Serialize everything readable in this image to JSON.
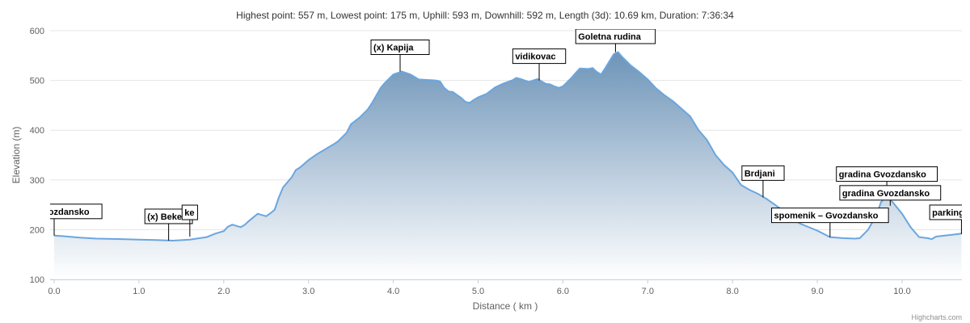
{
  "stats_text": "Highest point: 557 m, Lowest point: 175 m, Uphill: 593 m, Downhill: 592 m, Length (3d): 10.69 km, Duration: 7:36:34",
  "credits": "Highcharts.com",
  "colors": {
    "line": "#6aa6e0",
    "fill_top": "#6e94b8",
    "fill_bottom": "#ffffff",
    "grid": "#e6e6e6",
    "axis": "#c0d0e0"
  },
  "chart_data": {
    "type": "area",
    "xlabel": "Distance ( km )",
    "ylabel": "Elevation (m)",
    "xlim": [
      0,
      10.72
    ],
    "ylim": [
      100,
      600
    ],
    "x_ticks": [
      "0.0",
      "1.0",
      "2.0",
      "3.0",
      "4.0",
      "5.0",
      "6.0",
      "7.0",
      "8.0",
      "9.0",
      "10.0"
    ],
    "y_ticks": [
      "100",
      "200",
      "300",
      "400",
      "500",
      "600"
    ],
    "grid": true,
    "legend": "none",
    "series": [
      {
        "x": [
          0,
          0.1,
          0.3,
          0.5,
          0.8,
          1.0,
          1.2,
          1.4,
          1.6,
          1.8,
          1.9,
          2.0,
          2.05,
          2.1,
          2.2,
          2.25,
          2.3,
          2.4,
          2.5,
          2.55,
          2.6,
          2.65,
          2.7,
          2.8,
          2.85,
          2.9,
          3.0,
          3.1,
          3.2,
          3.3,
          3.35,
          3.45,
          3.5,
          3.6,
          3.7,
          3.75,
          3.85,
          3.9,
          4.0,
          4.1,
          4.2,
          4.3,
          4.5,
          4.55,
          4.6,
          4.65,
          4.7,
          4.8,
          4.85,
          4.9,
          4.95,
          5.0,
          5.1,
          5.2,
          5.3,
          5.4,
          5.45,
          5.5,
          5.6,
          5.7,
          5.8,
          5.85,
          5.9,
          5.95,
          6.0,
          6.1,
          6.15,
          6.2,
          6.3,
          6.35,
          6.4,
          6.45,
          6.5,
          6.6,
          6.65,
          6.7,
          6.8,
          6.9,
          7.0,
          7.1,
          7.2,
          7.3,
          7.5,
          7.6,
          7.7,
          7.8,
          7.9,
          8.0,
          8.1,
          8.2,
          8.3,
          8.4,
          8.5,
          8.6,
          8.7,
          8.8,
          9.0,
          9.15,
          9.3,
          9.45,
          9.5,
          9.6,
          9.7,
          9.75,
          9.8,
          9.85,
          9.9,
          10.0,
          10.1,
          10.2,
          10.3,
          10.35,
          10.4,
          10.5,
          10.6,
          10.7
        ],
        "y": [
          188,
          187,
          184,
          182,
          181,
          180,
          179,
          178,
          180,
          185,
          192,
          197,
          206,
          210,
          205,
          210,
          218,
          232,
          227,
          233,
          240,
          265,
          285,
          305,
          320,
          325,
          340,
          352,
          362,
          372,
          378,
          395,
          412,
          425,
          442,
          455,
          485,
          495,
          512,
          518,
          512,
          502,
          500,
          498,
          485,
          478,
          477,
          465,
          457,
          455,
          461,
          466,
          473,
          486,
          494,
          500,
          505,
          503,
          497,
          503,
          493,
          492,
          488,
          485,
          488,
          505,
          515,
          524,
          523,
          525,
          517,
          512,
          525,
          553,
          557,
          547,
          530,
          517,
          502,
          484,
          470,
          458,
          428,
          400,
          380,
          350,
          330,
          315,
          290,
          280,
          272,
          262,
          250,
          238,
          222,
          212,
          198,
          185,
          183,
          182,
          183,
          200,
          230,
          255,
          265,
          262,
          253,
          232,
          205,
          185,
          183,
          181,
          186,
          188,
          190,
          192
        ]
      }
    ],
    "annotations": [
      {
        "x": 0.0,
        "y": 188,
        "label": "enik – Gvozdansko"
      },
      {
        "x": 1.35,
        "y": 178,
        "label": "(x) Beke"
      },
      {
        "x": 1.6,
        "y": 186,
        "label": "ke"
      },
      {
        "x": 4.08,
        "y": 518,
        "label": "(x) Kapija"
      },
      {
        "x": 5.72,
        "y": 500,
        "label": "vidikovac"
      },
      {
        "x": 6.62,
        "y": 557,
        "label": "Goletna rudina"
      },
      {
        "x": 8.36,
        "y": 265,
        "label": "Brdjani"
      },
      {
        "x": 9.15,
        "y": 185,
        "label": "spomenik – Gvozdansko"
      },
      {
        "x": 9.82,
        "y": 263,
        "label": "gradina Gvozdansko"
      },
      {
        "x": 9.86,
        "y": 248,
        "label": "gradina Gvozdansko"
      },
      {
        "x": 10.7,
        "y": 191,
        "label": "parking – G"
      }
    ]
  }
}
